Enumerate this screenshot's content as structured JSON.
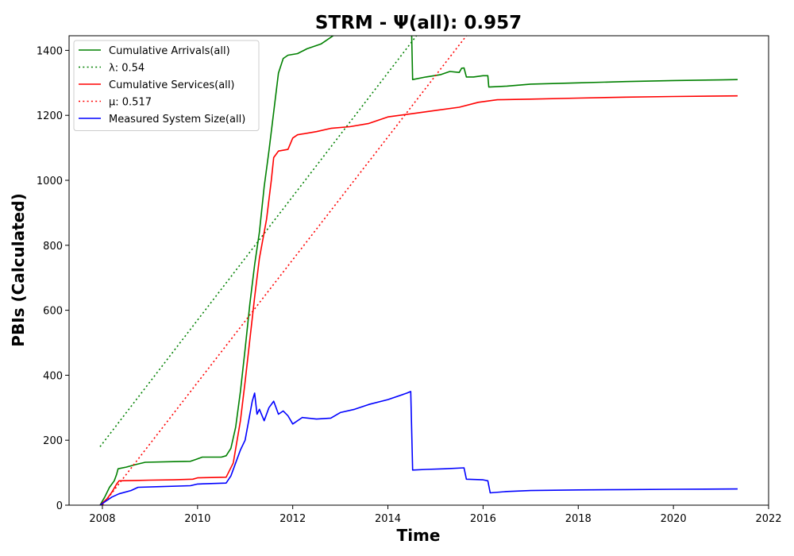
{
  "chart_data": {
    "type": "line",
    "title": "STRM -  Ψ(all): 0.957",
    "xlabel": "Time",
    "ylabel": "PBIs (Calculated)",
    "xlim": [
      2007.3,
      2022.0
    ],
    "ylim": [
      0,
      1445
    ],
    "xticks": [
      2008,
      2010,
      2012,
      2014,
      2016,
      2018,
      2020,
      2022
    ],
    "yticks": [
      0,
      200,
      400,
      600,
      800,
      1000,
      1200,
      1400
    ],
    "grid": false,
    "legend_position": "top-left",
    "series": [
      {
        "name": "Cumulative Arrivals(all)",
        "color": "#008000",
        "style": "solid",
        "points": [
          [
            2007.95,
            0
          ],
          [
            2008.05,
            25
          ],
          [
            2008.15,
            55
          ],
          [
            2008.25,
            75
          ],
          [
            2008.3,
            95
          ],
          [
            2008.33,
            112
          ],
          [
            2008.5,
            117
          ],
          [
            2008.7,
            125
          ],
          [
            2008.9,
            132
          ],
          [
            2009.5,
            134
          ],
          [
            2009.85,
            135
          ],
          [
            2009.95,
            140
          ],
          [
            2010.1,
            148
          ],
          [
            2010.5,
            148
          ],
          [
            2010.6,
            152
          ],
          [
            2010.7,
            175
          ],
          [
            2010.8,
            240
          ],
          [
            2010.9,
            350
          ],
          [
            2011.0,
            480
          ],
          [
            2011.1,
            620
          ],
          [
            2011.2,
            740
          ],
          [
            2011.3,
            840
          ],
          [
            2011.4,
            980
          ],
          [
            2011.5,
            1090
          ],
          [
            2011.6,
            1210
          ],
          [
            2011.7,
            1330
          ],
          [
            2011.8,
            1375
          ],
          [
            2011.9,
            1385
          ],
          [
            2012.1,
            1390
          ],
          [
            2012.3,
            1405
          ],
          [
            2012.6,
            1420
          ],
          [
            2012.85,
            1445
          ]
        ]
      },
      {
        "name": "",
        "color": "#008000",
        "style": "solid",
        "points": [
          [
            2014.5,
            1445
          ],
          [
            2014.52,
            1310
          ],
          [
            2014.8,
            1318
          ],
          [
            2015.1,
            1325
          ],
          [
            2015.3,
            1335
          ],
          [
            2015.5,
            1332
          ],
          [
            2015.55,
            1345
          ],
          [
            2015.6,
            1346
          ],
          [
            2015.65,
            1318
          ],
          [
            2015.8,
            1318
          ],
          [
            2016.0,
            1322
          ],
          [
            2016.1,
            1322
          ],
          [
            2016.12,
            1287
          ],
          [
            2016.5,
            1290
          ],
          [
            2017.0,
            1296
          ],
          [
            2018.0,
            1300
          ],
          [
            2019.0,
            1304
          ],
          [
            2020.0,
            1307
          ],
          [
            2021.0,
            1309
          ],
          [
            2021.35,
            1310
          ]
        ]
      },
      {
        "name": "λ: 0.54",
        "color": "#008000",
        "style": "dotted",
        "points": [
          [
            2007.95,
            180
          ],
          [
            2014.6,
            1445
          ]
        ]
      },
      {
        "name": "Cumulative Services(all)",
        "color": "#ff0000",
        "style": "solid",
        "points": [
          [
            2007.95,
            0
          ],
          [
            2008.1,
            20
          ],
          [
            2008.2,
            40
          ],
          [
            2008.3,
            65
          ],
          [
            2008.35,
            75
          ],
          [
            2008.7,
            76
          ],
          [
            2009.0,
            77
          ],
          [
            2009.5,
            78
          ],
          [
            2009.9,
            80
          ],
          [
            2010.0,
            84
          ],
          [
            2010.6,
            86
          ],
          [
            2010.75,
            130
          ],
          [
            2010.9,
            260
          ],
          [
            2011.0,
            380
          ],
          [
            2011.1,
            510
          ],
          [
            2011.2,
            640
          ],
          [
            2011.3,
            760
          ],
          [
            2011.45,
            880
          ],
          [
            2011.55,
            1000
          ],
          [
            2011.6,
            1070
          ],
          [
            2011.7,
            1090
          ],
          [
            2011.9,
            1095
          ],
          [
            2012.0,
            1130
          ],
          [
            2012.1,
            1140
          ],
          [
            2012.5,
            1150
          ],
          [
            2012.8,
            1160
          ],
          [
            2013.2,
            1165
          ],
          [
            2013.6,
            1175
          ],
          [
            2014.0,
            1195
          ],
          [
            2014.5,
            1205
          ],
          [
            2015.0,
            1215
          ],
          [
            2015.5,
            1225
          ],
          [
            2015.9,
            1240
          ],
          [
            2016.3,
            1248
          ],
          [
            2017.0,
            1250
          ],
          [
            2018.0,
            1253
          ],
          [
            2019.0,
            1256
          ],
          [
            2020.0,
            1258
          ],
          [
            2021.35,
            1260
          ]
        ]
      },
      {
        "name": "μ: 0.517",
        "color": "#ff0000",
        "style": "dotted",
        "points": [
          [
            2008.0,
            0
          ],
          [
            2015.65,
            1445
          ]
        ]
      },
      {
        "name": "Measured System Size(all)",
        "color": "#0000ff",
        "style": "solid",
        "points": [
          [
            2007.95,
            0
          ],
          [
            2008.1,
            15
          ],
          [
            2008.2,
            25
          ],
          [
            2008.35,
            35
          ],
          [
            2008.6,
            45
          ],
          [
            2008.75,
            55
          ],
          [
            2009.2,
            57
          ],
          [
            2009.85,
            60
          ],
          [
            2010.0,
            65
          ],
          [
            2010.6,
            68
          ],
          [
            2010.7,
            90
          ],
          [
            2010.8,
            130
          ],
          [
            2010.9,
            170
          ],
          [
            2011.0,
            200
          ],
          [
            2011.05,
            240
          ],
          [
            2011.1,
            280
          ],
          [
            2011.15,
            320
          ],
          [
            2011.2,
            345
          ],
          [
            2011.25,
            280
          ],
          [
            2011.3,
            295
          ],
          [
            2011.4,
            260
          ],
          [
            2011.5,
            300
          ],
          [
            2011.6,
            320
          ],
          [
            2011.7,
            280
          ],
          [
            2011.8,
            290
          ],
          [
            2011.9,
            275
          ],
          [
            2012.0,
            250
          ],
          [
            2012.2,
            270
          ],
          [
            2012.5,
            265
          ],
          [
            2012.8,
            268
          ],
          [
            2013.0,
            285
          ],
          [
            2013.3,
            295
          ],
          [
            2013.6,
            310
          ],
          [
            2014.0,
            325
          ],
          [
            2014.4,
            345
          ],
          [
            2014.48,
            350
          ],
          [
            2014.52,
            108
          ],
          [
            2014.8,
            110
          ],
          [
            2015.2,
            112
          ],
          [
            2015.6,
            115
          ],
          [
            2015.65,
            80
          ],
          [
            2016.0,
            78
          ],
          [
            2016.1,
            75
          ],
          [
            2016.15,
            38
          ],
          [
            2016.5,
            42
          ],
          [
            2017.0,
            45
          ],
          [
            2018.0,
            47
          ],
          [
            2019.0,
            48
          ],
          [
            2020.0,
            49
          ],
          [
            2021.35,
            50
          ]
        ]
      }
    ]
  }
}
